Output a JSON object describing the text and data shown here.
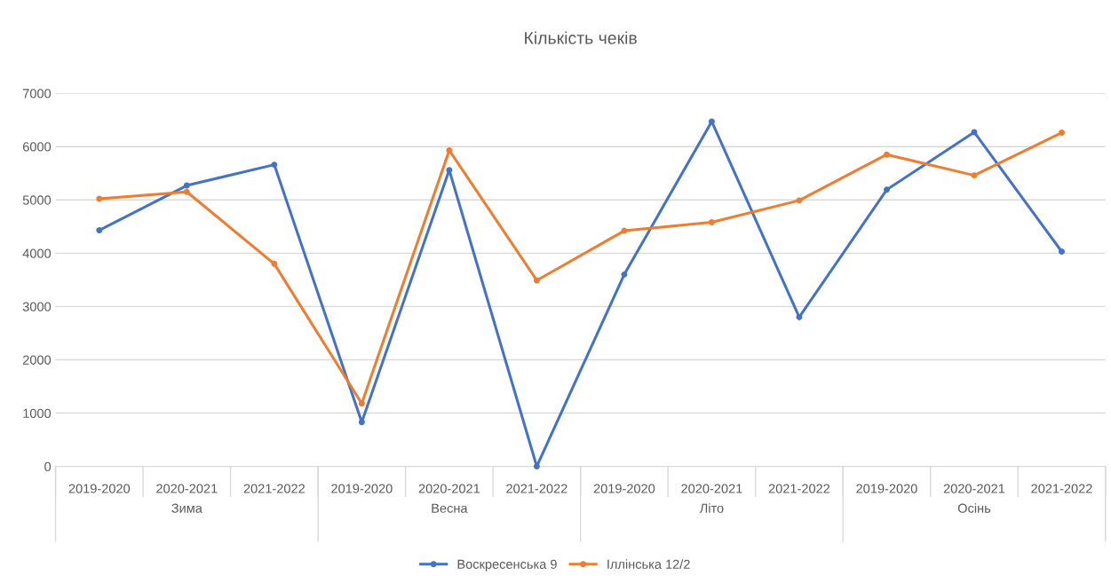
{
  "chart_data": {
    "type": "line",
    "title": "Кількість чеків",
    "categories": [
      "2019-2020",
      "2020-2021",
      "2021-2022",
      "2019-2020",
      "2020-2021",
      "2021-2022",
      "2019-2020",
      "2020-2021",
      "2021-2022",
      "2019-2020",
      "2020-2021",
      "2021-2022"
    ],
    "annotations": [
      "Зима",
      "Весна",
      "Літо",
      "Осінь"
    ],
    "series": [
      {
        "name": "Воскресенська 9",
        "color": "#4472c4",
        "values": [
          4430,
          5270,
          5660,
          830,
          5560,
          0,
          3600,
          6470,
          2800,
          5190,
          6270,
          4030
        ]
      },
      {
        "name": "Іллінська 12/2",
        "color": "#ed7d31",
        "values": [
          5020,
          5150,
          3800,
          1180,
          5930,
          3490,
          4420,
          4580,
          4990,
          5850,
          5460,
          6260
        ]
      }
    ],
    "ylim": [
      0,
      7000
    ],
    "yticks": [
      0,
      1000,
      2000,
      3000,
      4000,
      5000,
      6000,
      7000
    ],
    "grid": "y",
    "legend": "bottom",
    "marker": "circle",
    "line_style": "solid"
  }
}
